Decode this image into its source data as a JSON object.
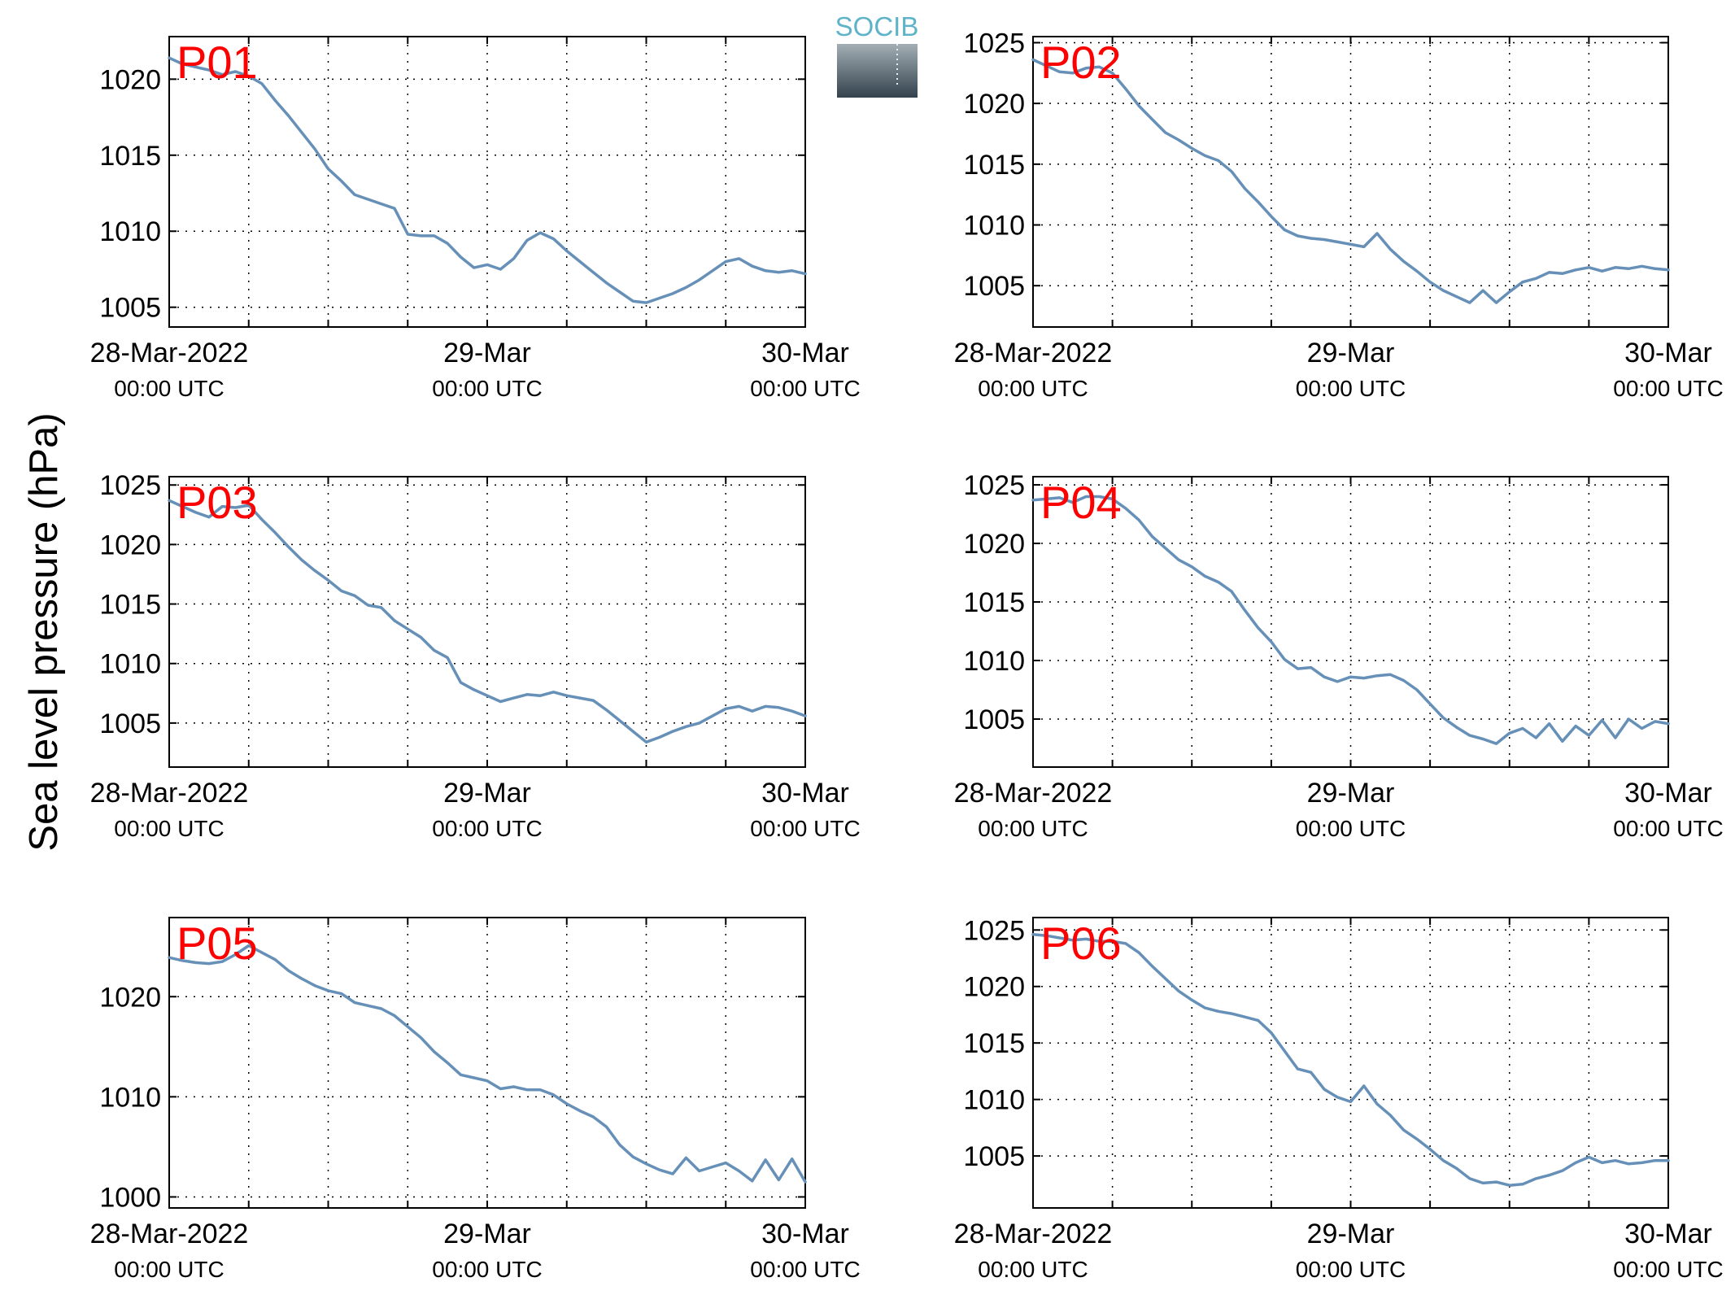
{
  "figure": {
    "ylabel": "Sea level pressure (hPa)",
    "logo_text": "SOCIB",
    "line_color": "#6690b7",
    "label_color": "#ff0000",
    "grid": "dotted"
  },
  "chart_data": [
    {
      "type": "line",
      "panel_label": "P01",
      "x_ticks": [
        {
          "main": "28-Mar-2022",
          "sub": "00:00 UTC"
        },
        {
          "main": "29-Mar",
          "sub": "00:00 UTC"
        },
        {
          "main": "30-Mar",
          "sub": "00:00 UTC"
        }
      ],
      "x_range_hours": [
        0,
        48
      ],
      "x_minor_ticks_hours": [
        6,
        12,
        18,
        30,
        36,
        42
      ],
      "yticks": [
        1005,
        1010,
        1015,
        1020
      ],
      "ylim": [
        1003.7,
        1022.8
      ],
      "series": [
        {
          "x": [
            0,
            1,
            2,
            3,
            4,
            5,
            6,
            7,
            8,
            9,
            10,
            11,
            12,
            13,
            14,
            15,
            16,
            17,
            18,
            19,
            20,
            21,
            22,
            23,
            24,
            25,
            26,
            27,
            28,
            29,
            30,
            31,
            32,
            33,
            34,
            35,
            36,
            37,
            38,
            39,
            40,
            41,
            42,
            43,
            44,
            45,
            46,
            47,
            48
          ],
          "y": [
            1021.4,
            1021.0,
            1020.8,
            1020.6,
            1020.3,
            1020.5,
            1020.2,
            1019.7,
            1018.6,
            1017.6,
            1016.5,
            1015.4,
            1014.1,
            1013.3,
            1012.4,
            1012.1,
            1011.8,
            1011.5,
            1009.8,
            1009.7,
            1009.7,
            1009.2,
            1008.3,
            1007.6,
            1007.8,
            1007.5,
            1008.2,
            1009.4,
            1009.9,
            1009.5,
            1008.7,
            1008.0,
            1007.3,
            1006.6,
            1006.0,
            1005.4,
            1005.3,
            1005.6,
            1005.9,
            1006.3,
            1006.8,
            1007.4,
            1008.0,
            1008.2,
            1007.7,
            1007.4,
            1007.3,
            1007.4,
            1007.2
          ]
        }
      ]
    },
    {
      "type": "line",
      "panel_label": "P02",
      "x_ticks": [
        {
          "main": "28-Mar-2022",
          "sub": "00:00 UTC"
        },
        {
          "main": "29-Mar",
          "sub": "00:00 UTC"
        },
        {
          "main": "30-Mar",
          "sub": "00:00 UTC"
        }
      ],
      "x_range_hours": [
        0,
        48
      ],
      "x_minor_ticks_hours": [
        6,
        12,
        18,
        30,
        36,
        42
      ],
      "yticks": [
        1005,
        1010,
        1015,
        1020,
        1025
      ],
      "ylim": [
        1001.6,
        1025.5
      ],
      "series": [
        {
          "x": [
            0,
            1,
            2,
            3,
            4,
            5,
            6,
            7,
            8,
            9,
            10,
            11,
            12,
            13,
            14,
            15,
            16,
            17,
            18,
            19,
            20,
            21,
            22,
            23,
            24,
            25,
            26,
            27,
            28,
            29,
            30,
            31,
            32,
            33,
            34,
            35,
            36,
            37,
            38,
            39,
            40,
            41,
            42,
            43,
            44,
            45,
            46,
            47,
            48
          ],
          "y": [
            1023.6,
            1023.1,
            1022.6,
            1022.5,
            1022.9,
            1023.0,
            1022.5,
            1021.2,
            1019.8,
            1018.7,
            1017.6,
            1017.0,
            1016.3,
            1015.7,
            1015.3,
            1014.4,
            1013.0,
            1011.9,
            1010.7,
            1009.6,
            1009.1,
            1008.9,
            1008.8,
            1008.6,
            1008.4,
            1008.2,
            1009.3,
            1008.0,
            1007.0,
            1006.2,
            1005.3,
            1004.6,
            1004.1,
            1003.6,
            1004.6,
            1003.6,
            1004.5,
            1005.3,
            1005.6,
            1006.1,
            1006.0,
            1006.3,
            1006.5,
            1006.2,
            1006.5,
            1006.4,
            1006.6,
            1006.4,
            1006.3
          ]
        }
      ]
    },
    {
      "type": "line",
      "panel_label": "P03",
      "x_ticks": [
        {
          "main": "28-Mar-2022",
          "sub": "00:00 UTC"
        },
        {
          "main": "29-Mar",
          "sub": "00:00 UTC"
        },
        {
          "main": "30-Mar",
          "sub": "00:00 UTC"
        }
      ],
      "x_range_hours": [
        0,
        48
      ],
      "x_minor_ticks_hours": [
        6,
        12,
        18,
        30,
        36,
        42
      ],
      "yticks": [
        1005,
        1010,
        1015,
        1020,
        1025
      ],
      "ylim": [
        1001.3,
        1025.7
      ],
      "series": [
        {
          "x": [
            0,
            1,
            2,
            3,
            4,
            5,
            6,
            7,
            8,
            9,
            10,
            11,
            12,
            13,
            14,
            15,
            16,
            17,
            18,
            19,
            20,
            21,
            22,
            23,
            24,
            25,
            26,
            27,
            28,
            29,
            30,
            31,
            32,
            33,
            34,
            35,
            36,
            37,
            38,
            39,
            40,
            41,
            42,
            43,
            44,
            45,
            46,
            47,
            48
          ],
          "y": [
            1023.7,
            1023.2,
            1022.7,
            1022.3,
            1023.2,
            1023.1,
            1023.3,
            1022.1,
            1021.0,
            1019.8,
            1018.7,
            1017.8,
            1017.0,
            1016.1,
            1015.7,
            1014.9,
            1014.7,
            1013.6,
            1012.9,
            1012.2,
            1011.1,
            1010.5,
            1008.4,
            1007.8,
            1007.3,
            1006.8,
            1007.1,
            1007.4,
            1007.3,
            1007.6,
            1007.3,
            1007.1,
            1006.9,
            1006.1,
            1005.2,
            1004.3,
            1003.4,
            1003.8,
            1004.3,
            1004.7,
            1005.0,
            1005.6,
            1006.2,
            1006.4,
            1006.0,
            1006.4,
            1006.3,
            1006.0,
            1005.6
          ]
        }
      ]
    },
    {
      "type": "line",
      "panel_label": "P04",
      "x_ticks": [
        {
          "main": "28-Mar-2022",
          "sub": "00:00 UTC"
        },
        {
          "main": "29-Mar",
          "sub": "00:00 UTC"
        },
        {
          "main": "30-Mar",
          "sub": "00:00 UTC"
        }
      ],
      "x_range_hours": [
        0,
        48
      ],
      "x_minor_ticks_hours": [
        6,
        12,
        18,
        30,
        36,
        42
      ],
      "yticks": [
        1005,
        1010,
        1015,
        1020,
        1025
      ],
      "ylim": [
        1000.9,
        1025.7
      ],
      "series": [
        {
          "x": [
            0,
            1,
            2,
            3,
            4,
            5,
            6,
            7,
            8,
            9,
            10,
            11,
            12,
            13,
            14,
            15,
            16,
            17,
            18,
            19,
            20,
            21,
            22,
            23,
            24,
            25,
            26,
            27,
            28,
            29,
            30,
            31,
            32,
            33,
            34,
            35,
            36,
            37,
            38,
            39,
            40,
            41,
            42,
            43,
            44,
            45,
            46,
            47,
            48
          ],
          "y": [
            1023.7,
            1023.8,
            1023.9,
            1023.5,
            1024.0,
            1024.0,
            1023.8,
            1023.0,
            1022.0,
            1020.6,
            1019.6,
            1018.6,
            1018.0,
            1017.2,
            1016.7,
            1015.9,
            1014.3,
            1012.8,
            1011.6,
            1010.1,
            1009.3,
            1009.4,
            1008.6,
            1008.2,
            1008.6,
            1008.5,
            1008.7,
            1008.8,
            1008.3,
            1007.5,
            1006.3,
            1005.1,
            1004.3,
            1003.6,
            1003.3,
            1002.9,
            1003.8,
            1004.2,
            1003.4,
            1004.6,
            1003.1,
            1004.4,
            1003.6,
            1004.9,
            1003.4,
            1005.0,
            1004.2,
            1004.8,
            1004.6
          ]
        }
      ]
    },
    {
      "type": "line",
      "panel_label": "P05",
      "x_ticks": [
        {
          "main": "28-Mar-2022",
          "sub": "00:00 UTC"
        },
        {
          "main": "29-Mar",
          "sub": "00:00 UTC"
        },
        {
          "main": "30-Mar",
          "sub": "00:00 UTC"
        }
      ],
      "x_range_hours": [
        0,
        48
      ],
      "x_minor_ticks_hours": [
        6,
        12,
        18,
        30,
        36,
        42
      ],
      "yticks": [
        1000,
        1010,
        1020
      ],
      "ylim": [
        998.9,
        1027.9
      ],
      "series": [
        {
          "x": [
            0,
            1,
            2,
            3,
            4,
            5,
            6,
            7,
            8,
            9,
            10,
            11,
            12,
            13,
            14,
            15,
            16,
            17,
            18,
            19,
            20,
            21,
            22,
            23,
            24,
            25,
            26,
            27,
            28,
            29,
            30,
            31,
            32,
            33,
            34,
            35,
            36,
            37,
            38,
            39,
            40,
            41,
            42,
            43,
            44,
            45,
            46,
            47,
            48
          ],
          "y": [
            1023.9,
            1023.6,
            1023.4,
            1023.3,
            1023.5,
            1024.2,
            1025.1,
            1024.4,
            1023.7,
            1022.6,
            1021.8,
            1021.1,
            1020.6,
            1020.3,
            1019.4,
            1019.1,
            1018.8,
            1018.1,
            1017.0,
            1015.9,
            1014.5,
            1013.4,
            1012.2,
            1011.9,
            1011.6,
            1010.8,
            1011.0,
            1010.7,
            1010.7,
            1010.2,
            1009.3,
            1008.6,
            1008.0,
            1007.0,
            1005.2,
            1004.0,
            1003.3,
            1002.7,
            1002.3,
            1003.9,
            1002.6,
            1003.0,
            1003.4,
            1002.6,
            1001.6,
            1003.7,
            1001.7,
            1003.8,
            1001.5
          ]
        }
      ]
    },
    {
      "type": "line",
      "panel_label": "P06",
      "x_ticks": [
        {
          "main": "28-Mar-2022",
          "sub": "00:00 UTC"
        },
        {
          "main": "29-Mar",
          "sub": "00:00 UTC"
        },
        {
          "main": "30-Mar",
          "sub": "00:00 UTC"
        }
      ],
      "x_range_hours": [
        0,
        48
      ],
      "x_minor_ticks_hours": [
        6,
        12,
        18,
        30,
        36,
        42
      ],
      "yticks": [
        1005,
        1010,
        1015,
        1020,
        1025
      ],
      "ylim": [
        1000.4,
        1026.1
      ],
      "series": [
        {
          "x": [
            0,
            1,
            2,
            3,
            4,
            5,
            6,
            7,
            8,
            9,
            10,
            11,
            12,
            13,
            14,
            15,
            16,
            17,
            18,
            19,
            20,
            21,
            22,
            23,
            24,
            25,
            26,
            27,
            28,
            29,
            30,
            31,
            32,
            33,
            34,
            35,
            36,
            37,
            38,
            39,
            40,
            41,
            42,
            43,
            44,
            45,
            46,
            47,
            48
          ],
          "y": [
            1024.6,
            1024.5,
            1024.3,
            1024.1,
            1024.2,
            1024.0,
            1024.0,
            1023.8,
            1023.0,
            1021.8,
            1020.7,
            1019.6,
            1018.8,
            1018.1,
            1017.8,
            1017.6,
            1017.3,
            1017.0,
            1015.9,
            1014.3,
            1012.7,
            1012.4,
            1010.9,
            1010.2,
            1009.8,
            1011.2,
            1009.6,
            1008.6,
            1007.3,
            1006.5,
            1005.6,
            1004.6,
            1003.9,
            1003.0,
            1002.6,
            1002.7,
            1002.4,
            1002.5,
            1003.0,
            1003.3,
            1003.7,
            1004.4,
            1004.9,
            1004.4,
            1004.6,
            1004.3,
            1004.4,
            1004.6,
            1004.6
          ]
        }
      ]
    }
  ]
}
